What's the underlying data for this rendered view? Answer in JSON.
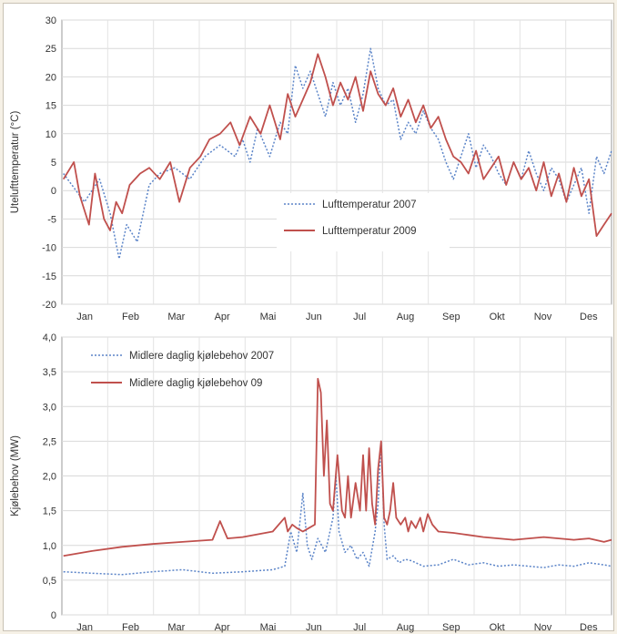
{
  "chart_data": [
    {
      "type": "line",
      "ylabel": "Utelufttemperatur (°C)",
      "ylim": [
        -20,
        30
      ],
      "yticks": [
        -20,
        -15,
        -10,
        -5,
        0,
        5,
        10,
        15,
        20,
        25,
        30
      ],
      "categories": [
        "Jan",
        "Feb",
        "Mar",
        "Apr",
        "Mai",
        "Jun",
        "Jul",
        "Aug",
        "Sep",
        "Okt",
        "Nov",
        "Des"
      ],
      "grid": true,
      "legend_position": "center-right",
      "series": [
        {
          "name": "Lufttemperatur 2007",
          "color": "#5b84c8",
          "style": "dotted",
          "x": [
            1,
            15,
            25,
            32,
            38,
            43,
            50,
            58,
            65,
            75,
            85,
            95,
            105,
            115,
            120,
            125,
            130,
            138,
            145,
            150,
            155,
            160,
            165,
            170,
            175,
            180,
            185,
            190,
            195,
            200,
            205,
            210,
            215,
            220,
            225,
            230,
            235,
            240,
            245,
            250,
            255,
            260,
            265,
            270,
            275,
            280,
            285,
            290,
            295,
            300,
            305,
            310,
            315,
            320,
            325,
            330,
            335,
            340,
            345,
            350,
            355,
            360,
            365
          ],
          "y": [
            3,
            -2,
            2,
            -4,
            -12,
            -6,
            -9,
            1,
            3,
            4,
            2,
            6,
            8,
            6,
            9,
            5,
            11,
            6,
            12,
            10,
            22,
            18,
            21,
            17,
            13,
            19,
            15,
            18,
            12,
            17,
            25,
            18,
            15,
            16,
            9,
            12,
            10,
            14,
            11,
            9,
            5,
            2,
            6,
            10,
            4,
            8,
            6,
            3,
            1,
            5,
            2,
            7,
            3,
            0,
            4,
            2,
            -2,
            1,
            4,
            -4,
            6,
            3,
            7
          ]
        },
        {
          "name": "Lufttemperatur 2009",
          "color": "#c0504d",
          "style": "solid",
          "x": [
            1,
            8,
            12,
            18,
            22,
            28,
            32,
            36,
            40,
            45,
            52,
            58,
            65,
            72,
            78,
            85,
            92,
            98,
            105,
            112,
            118,
            125,
            132,
            138,
            145,
            150,
            155,
            160,
            165,
            170,
            175,
            180,
            185,
            190,
            195,
            200,
            205,
            210,
            215,
            220,
            225,
            230,
            235,
            240,
            245,
            250,
            255,
            260,
            265,
            270,
            275,
            280,
            285,
            290,
            295,
            300,
            305,
            310,
            315,
            320,
            325,
            330,
            335,
            340,
            345,
            350,
            355,
            360,
            365
          ],
          "y": [
            2,
            5,
            -1,
            -6,
            3,
            -5,
            -7,
            -2,
            -4,
            1,
            3,
            4,
            2,
            5,
            -2,
            4,
            6,
            9,
            10,
            12,
            8,
            13,
            10,
            15,
            9,
            17,
            13,
            16,
            19,
            24,
            20,
            15,
            19,
            16,
            20,
            14,
            21,
            17,
            15,
            18,
            13,
            16,
            12,
            15,
            11,
            13,
            9,
            6,
            5,
            3,
            7,
            2,
            4,
            6,
            1,
            5,
            2,
            4,
            0,
            5,
            -1,
            3,
            -2,
            4,
            -1,
            2,
            -8,
            -6,
            -4
          ]
        }
      ]
    },
    {
      "type": "line",
      "ylabel": "Kjølebehov (MW)",
      "ylim": [
        0,
        4.0
      ],
      "yticks": [
        "0",
        "0,5",
        "1,0",
        "1,5",
        "2,0",
        "2,5",
        "3,0",
        "3,5",
        "4,0"
      ],
      "categories": [
        "Jan",
        "Feb",
        "Mar",
        "Apr",
        "Mai",
        "Jun",
        "Jul",
        "Aug",
        "Sep",
        "Okt",
        "Nov",
        "Des"
      ],
      "grid": true,
      "legend_position": "top-left",
      "series": [
        {
          "name": "Midlere daglig kjølebehov 2007",
          "color": "#5b84c8",
          "style": "dotted",
          "x": [
            1,
            20,
            40,
            60,
            80,
            100,
            120,
            140,
            148,
            152,
            156,
            160,
            163,
            166,
            170,
            175,
            180,
            182,
            184,
            188,
            192,
            196,
            200,
            204,
            208,
            210,
            212,
            214,
            216,
            220,
            224,
            228,
            232,
            240,
            250,
            260,
            270,
            280,
            290,
            300,
            310,
            320,
            330,
            340,
            350,
            360,
            365
          ],
          "y": [
            0.62,
            0.6,
            0.58,
            0.62,
            0.65,
            0.6,
            0.62,
            0.65,
            0.7,
            1.2,
            0.9,
            1.75,
            1.0,
            0.8,
            1.1,
            0.9,
            1.4,
            2.0,
            1.2,
            0.9,
            1.0,
            0.8,
            0.9,
            0.7,
            1.2,
            1.6,
            2.5,
            1.3,
            0.8,
            0.85,
            0.75,
            0.8,
            0.78,
            0.7,
            0.72,
            0.8,
            0.72,
            0.75,
            0.7,
            0.72,
            0.7,
            0.68,
            0.72,
            0.7,
            0.75,
            0.72,
            0.7
          ]
        },
        {
          "name": "Midlere daglig kjølebehov 09",
          "color": "#c0504d",
          "style": "solid",
          "x": [
            1,
            20,
            40,
            60,
            80,
            100,
            105,
            110,
            120,
            140,
            148,
            150,
            153,
            156,
            160,
            164,
            168,
            170,
            172,
            174,
            176,
            178,
            180,
            183,
            186,
            188,
            190,
            192,
            195,
            198,
            200,
            202,
            204,
            206,
            208,
            210,
            212,
            214,
            216,
            218,
            220,
            222,
            225,
            228,
            230,
            232,
            235,
            238,
            240,
            243,
            246,
            250,
            260,
            270,
            280,
            290,
            300,
            310,
            320,
            330,
            340,
            350,
            360,
            365
          ],
          "y": [
            0.85,
            0.92,
            0.98,
            1.02,
            1.05,
            1.08,
            1.35,
            1.1,
            1.12,
            1.2,
            1.4,
            1.2,
            1.3,
            1.25,
            1.2,
            1.25,
            1.3,
            3.4,
            3.2,
            2.0,
            2.8,
            1.6,
            1.5,
            2.3,
            1.5,
            1.4,
            2.0,
            1.4,
            1.9,
            1.5,
            2.3,
            1.5,
            2.4,
            1.6,
            1.3,
            2.1,
            2.5,
            1.4,
            1.3,
            1.5,
            1.9,
            1.4,
            1.3,
            1.4,
            1.2,
            1.35,
            1.25,
            1.4,
            1.2,
            1.45,
            1.3,
            1.2,
            1.18,
            1.15,
            1.12,
            1.1,
            1.08,
            1.1,
            1.12,
            1.1,
            1.08,
            1.1,
            1.05,
            1.08
          ]
        }
      ]
    }
  ]
}
